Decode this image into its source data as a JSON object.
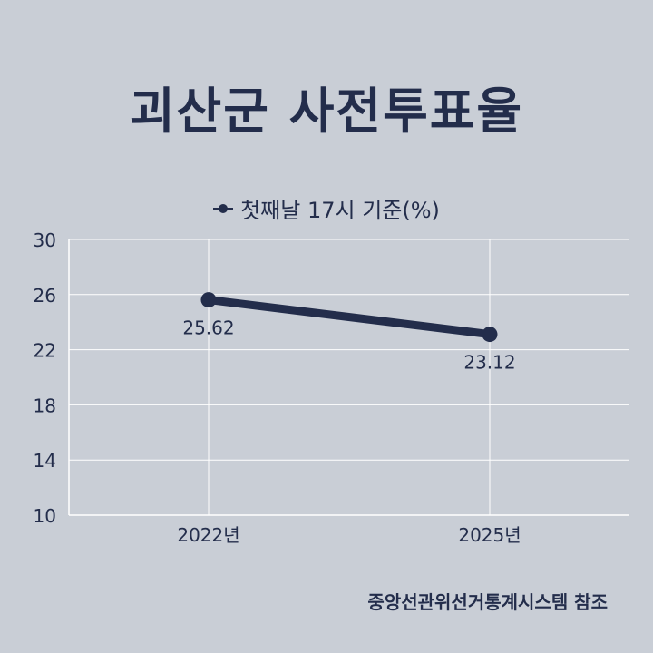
{
  "title": "괴산군 사전투표율",
  "source": "중앙선관위선거통계시스템 참조",
  "chart_data": {
    "type": "line",
    "categories": [
      "2022년",
      "2025년"
    ],
    "series": [
      {
        "name": "첫째날 17시 기준(%)",
        "values": [
          25.62,
          23.12
        ],
        "labels": [
          "25.62",
          "23.12"
        ]
      }
    ],
    "ylim": [
      10,
      30
    ],
    "yticks": [
      10,
      14,
      18,
      22,
      26,
      30
    ],
    "grid": true,
    "legend": "top-center",
    "color": "#232d4b"
  }
}
